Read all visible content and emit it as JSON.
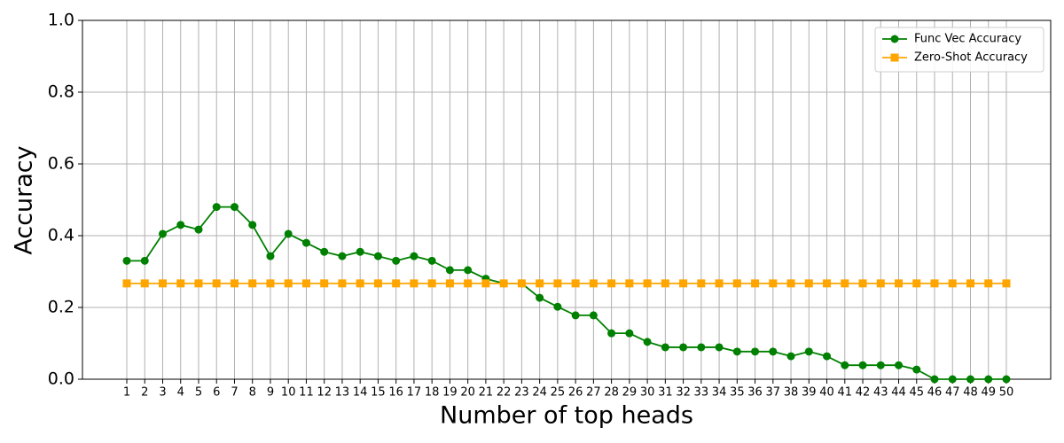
{
  "chart_data": {
    "type": "line",
    "x_label": "Number of top heads",
    "y_label": "Accuracy",
    "categories": [
      "1",
      "2",
      "3",
      "4",
      "5",
      "6",
      "7",
      "8",
      "9",
      "10",
      "11",
      "12",
      "13",
      "14",
      "15",
      "16",
      "17",
      "18",
      "19",
      "20",
      "21",
      "22",
      "23",
      "24",
      "25",
      "26",
      "27",
      "28",
      "29",
      "30",
      "31",
      "32",
      "33",
      "34",
      "35",
      "36",
      "37",
      "38",
      "39",
      "40",
      "41",
      "42",
      "43",
      "44",
      "45",
      "46",
      "47",
      "48",
      "49",
      "50"
    ],
    "series": [
      {
        "name": "Func Vec Accuracy",
        "color": "#008000",
        "marker": "circle",
        "values": [
          0.33,
          0.33,
          0.405,
          0.43,
          0.417,
          0.48,
          0.48,
          0.43,
          0.343,
          0.405,
          0.38,
          0.355,
          0.343,
          0.355,
          0.343,
          0.33,
          0.343,
          0.33,
          0.304,
          0.304,
          0.28,
          0.267,
          0.267,
          0.227,
          0.202,
          0.178,
          0.178,
          0.128,
          0.128,
          0.104,
          0.089,
          0.089,
          0.089,
          0.089,
          0.077,
          0.077,
          0.077,
          0.064,
          0.077,
          0.064,
          0.039,
          0.039,
          0.039,
          0.039,
          0.027,
          0,
          0,
          0,
          0,
          0
        ]
      },
      {
        "name": "Zero-Shot Accuracy",
        "color": "#ffa500",
        "marker": "square",
        "values": [
          0.267,
          0.267,
          0.267,
          0.267,
          0.267,
          0.267,
          0.267,
          0.267,
          0.267,
          0.267,
          0.267,
          0.267,
          0.267,
          0.267,
          0.267,
          0.267,
          0.267,
          0.267,
          0.267,
          0.267,
          0.267,
          0.267,
          0.267,
          0.267,
          0.267,
          0.267,
          0.267,
          0.267,
          0.267,
          0.267,
          0.267,
          0.267,
          0.267,
          0.267,
          0.267,
          0.267,
          0.267,
          0.267,
          0.267,
          0.267,
          0.267,
          0.267,
          0.267,
          0.267,
          0.267,
          0.267,
          0.267,
          0.267,
          0.267,
          0.267
        ]
      }
    ],
    "ylim": [
      0,
      1
    ],
    "yticks": [
      {
        "value": 0,
        "label": "0.0"
      },
      {
        "value": 0.2,
        "label": "0.2"
      },
      {
        "value": 0.4,
        "label": "0.4"
      },
      {
        "value": 0.6,
        "label": "0.6"
      },
      {
        "value": 0.8,
        "label": "0.8"
      },
      {
        "value": 1,
        "label": "1.0"
      }
    ],
    "grid": true,
    "legend": "upper right"
  }
}
